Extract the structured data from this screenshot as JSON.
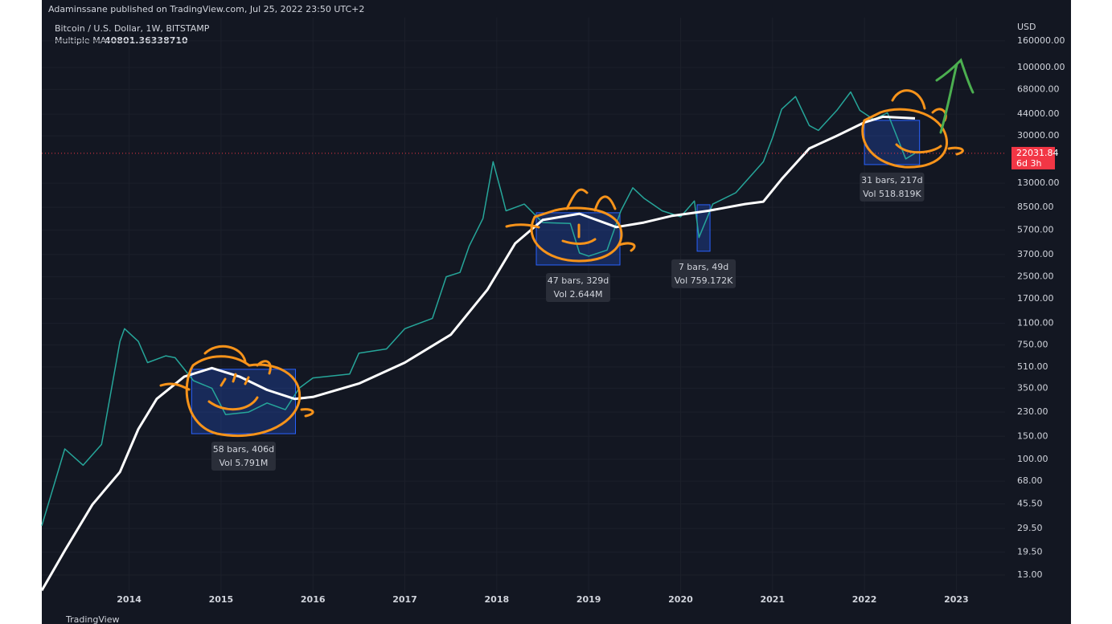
{
  "header": "Adaminssane published on TradingView.com, Jul 25, 2022 23:50 UTC+2",
  "footer": "TradingView",
  "chart_data": {
    "type": "line",
    "log_scale": true,
    "grid": true,
    "y_unit": "USD",
    "xlim": [
      2013.05,
      2023.53
    ],
    "xticks": [
      2014,
      2015,
      2016,
      2017,
      2018,
      2019,
      2020,
      2021,
      2022,
      2023
    ],
    "ylim": [
      9.25,
      241000
    ],
    "yticks": [
      {
        "value": 160000,
        "label": "160000.00"
      },
      {
        "value": 100000,
        "label": "100000.00"
      },
      {
        "value": 68000,
        "label": "68000.00"
      },
      {
        "value": 44000,
        "label": "44000.00"
      },
      {
        "value": 30000,
        "label": "30000.00"
      },
      {
        "value": 13000,
        "label": "13000.00"
      },
      {
        "value": 8500,
        "label": "8500.00"
      },
      {
        "value": 5700,
        "label": "5700.00"
      },
      {
        "value": 3700,
        "label": "3700.00"
      },
      {
        "value": 2500,
        "label": "2500.00"
      },
      {
        "value": 1700,
        "label": "1700.00"
      },
      {
        "value": 1100,
        "label": "1100.00"
      },
      {
        "value": 750,
        "label": "750.00"
      },
      {
        "value": 510,
        "label": "510.00"
      },
      {
        "value": 350,
        "label": "350.00"
      },
      {
        "value": 230,
        "label": "230.00"
      },
      {
        "value": 150,
        "label": "150.00"
      },
      {
        "value": 100,
        "label": "100.00"
      },
      {
        "value": 68,
        "label": "68.00"
      },
      {
        "value": 45.5,
        "label": "45.50"
      },
      {
        "value": 29.5,
        "label": "29.50"
      },
      {
        "value": 19.5,
        "label": "19.50"
      },
      {
        "value": 13,
        "label": "13.00"
      }
    ],
    "series": [
      {
        "name": "Bitcoin / U.S. Dollar, 1W, BITSTAMP",
        "color": "#26a69a",
        "last_value_label": "22031.84",
        "countdown": "6d 3h",
        "label_color": "#f23645",
        "x": [
          2013.05,
          2013.3,
          2013.5,
          2013.7,
          2013.9,
          2013.95,
          2014.1,
          2014.2,
          2014.4,
          2014.5,
          2014.7,
          2014.9,
          2015.05,
          2015.3,
          2015.5,
          2015.7,
          2015.85,
          2016.0,
          2016.4,
          2016.5,
          2016.8,
          2017.0,
          2017.3,
          2017.45,
          2017.6,
          2017.7,
          2017.85,
          2017.96,
          2018.05,
          2018.1,
          2018.3,
          2018.5,
          2018.8,
          2018.9,
          2019.0,
          2019.2,
          2019.35,
          2019.48,
          2019.6,
          2019.8,
          2020.0,
          2020.15,
          2020.2,
          2020.35,
          2020.6,
          2020.9,
          2021.0,
          2021.1,
          2021.25,
          2021.4,
          2021.5,
          2021.7,
          2021.85,
          2021.95,
          2022.1,
          2022.25,
          2022.35,
          2022.45,
          2022.55
        ],
        "values": [
          31,
          120,
          90,
          130,
          800,
          1000,
          800,
          550,
          620,
          600,
          400,
          350,
          220,
          230,
          270,
          240,
          350,
          420,
          450,
          650,
          700,
          1000,
          1200,
          2500,
          2700,
          4300,
          7000,
          19000,
          11000,
          8000,
          9000,
          6500,
          6400,
          3800,
          3600,
          4000,
          8000,
          12000,
          10000,
          8000,
          7200,
          9500,
          5000,
          9000,
          11000,
          19000,
          29000,
          48000,
          60000,
          36000,
          33000,
          47000,
          65000,
          47000,
          40000,
          45000,
          30000,
          20000,
          22031.84
        ]
      },
      {
        "name": "Multiple MA",
        "color": "#ffffff",
        "last_value_label": "40801.36338710",
        "x": [
          2013.05,
          2013.3,
          2013.6,
          2013.9,
          2014.1,
          2014.3,
          2014.6,
          2014.9,
          2015.2,
          2015.5,
          2015.8,
          2016.0,
          2016.5,
          2017.0,
          2017.5,
          2017.9,
          2018.2,
          2018.5,
          2018.9,
          2019.3,
          2019.6,
          2019.9,
          2020.3,
          2020.7,
          2020.9,
          2021.1,
          2021.4,
          2021.7,
          2022.0,
          2022.2,
          2022.55
        ],
        "values": [
          9.9,
          20,
          45,
          80,
          170,
          290,
          430,
          500,
          430,
          340,
          290,
          300,
          380,
          550,
          900,
          2000,
          4500,
          6800,
          7600,
          6000,
          6500,
          7300,
          8000,
          9000,
          9400,
          14000,
          24000,
          30000,
          38000,
          42000,
          40801.3633871
        ]
      }
    ],
    "measurements": [
      {
        "x": [
          2014.68,
          2015.81
        ],
        "y": [
          157,
          489
        ],
        "bars_label": "58 bars, 406d",
        "vol_label": "Vol 5.791M"
      },
      {
        "x": [
          2018.43,
          2019.34
        ],
        "y": [
          3076,
          7730
        ],
        "bars_label": "47 bars, 329d",
        "vol_label": "Vol 2.644M"
      },
      {
        "x": [
          2020.18,
          2020.32
        ],
        "y": [
          3920,
          8900
        ],
        "bars_label": "7 bars, 49d",
        "vol_label": "Vol 759.172K"
      },
      {
        "x": [
          2022.0,
          2022.6
        ],
        "y": [
          18070,
          39400
        ],
        "bars_label": "31 bars, 217d",
        "vol_label": "Vol 518.819K"
      }
    ]
  }
}
